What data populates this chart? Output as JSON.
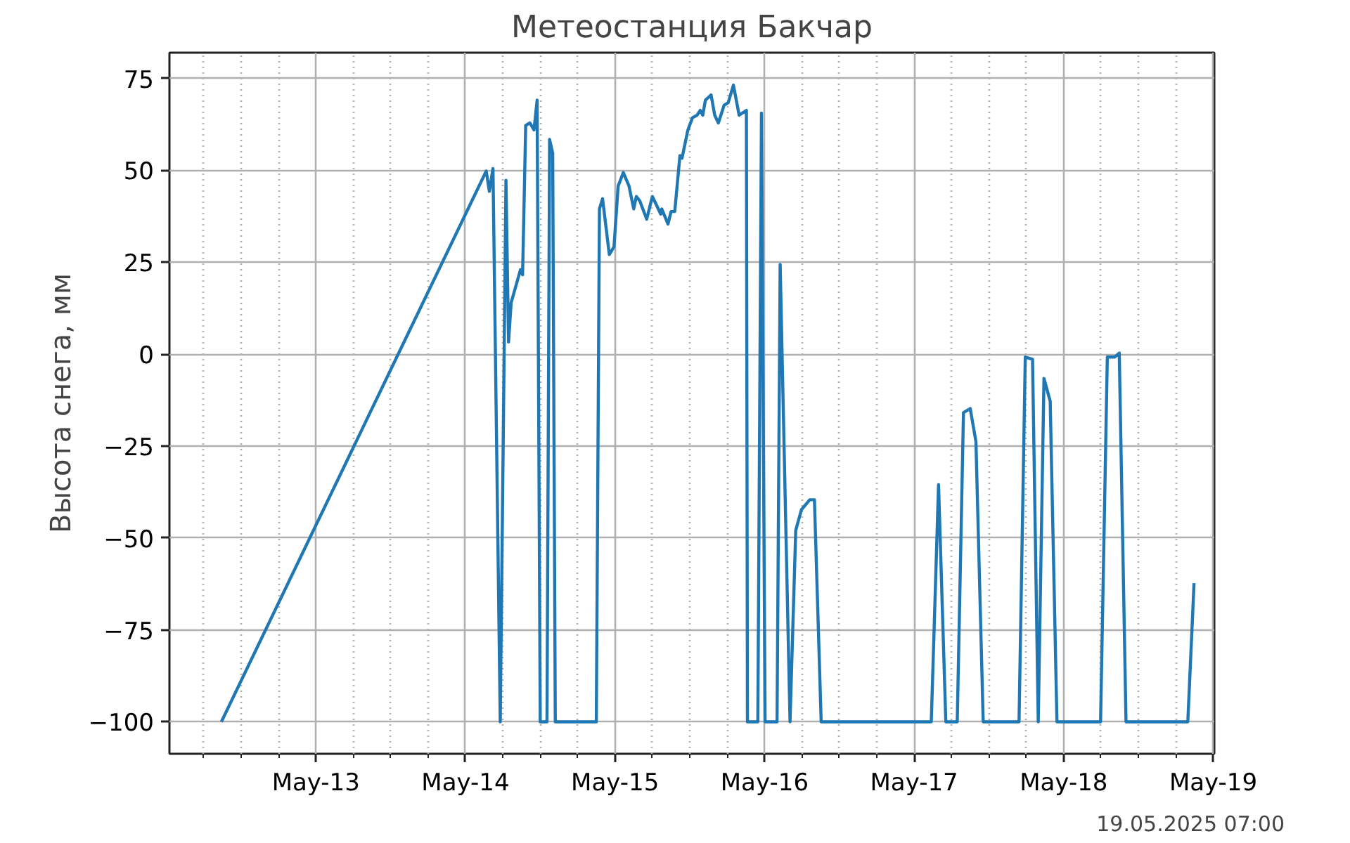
{
  "chart_data": {
    "type": "line",
    "title": "Метеостанция Бакчар",
    "ylabel": "Высота снега, мм",
    "annotations": [
      "19.05.2025 07:00"
    ],
    "x": [
      "2025-05-12T08:50",
      "2025-05-14T03:20",
      "2025-05-14T03:50",
      "2025-05-14T04:25",
      "2025-05-14T05:35",
      "2025-05-14T06:30",
      "2025-05-14T06:55",
      "2025-05-14T07:20",
      "2025-05-14T08:50",
      "2025-05-14T09:10",
      "2025-05-14T09:40",
      "2025-05-14T10:20",
      "2025-05-14T11:00",
      "2025-05-14T11:30",
      "2025-05-14T12:00",
      "2025-05-14T13:05",
      "2025-05-14T13:30",
      "2025-05-14T14:00",
      "2025-05-14T14:25",
      "2025-05-14T21:00",
      "2025-05-14T21:30",
      "2025-05-14T22:00",
      "2025-05-14T23:05",
      "2025-05-14T23:50",
      "2025-05-15T00:30",
      "2025-05-15T01:20",
      "2025-05-15T02:15",
      "2025-05-15T03:00",
      "2025-05-15T03:25",
      "2025-05-15T04:00",
      "2025-05-15T05:05",
      "2025-05-15T06:00",
      "2025-05-15T06:45",
      "2025-05-15T07:20",
      "2025-05-15T07:30",
      "2025-05-15T08:30",
      "2025-05-15T09:00",
      "2025-05-15T09:35",
      "2025-05-15T10:25",
      "2025-05-15T10:45",
      "2025-05-15T11:40",
      "2025-05-15T12:25",
      "2025-05-15T13:10",
      "2025-05-15T13:40",
      "2025-05-15T14:05",
      "2025-05-15T14:30",
      "2025-05-15T15:25",
      "2025-05-15T16:00",
      "2025-05-15T16:35",
      "2025-05-15T17:30",
      "2025-05-15T18:10",
      "2025-05-15T19:00",
      "2025-05-15T19:55",
      "2025-05-15T21:05",
      "2025-05-15T21:15",
      "2025-05-15T22:55",
      "2025-05-15T23:30",
      "2025-05-16T00:05",
      "2025-05-16T02:00",
      "2025-05-16T02:30",
      "2025-05-16T04:05",
      "2025-05-16T05:00",
      "2025-05-16T05:55",
      "2025-05-16T07:15",
      "2025-05-16T08:00",
      "2025-05-16T09:05",
      "2025-05-17T02:45",
      "2025-05-17T03:55",
      "2025-05-17T05:05",
      "2025-05-17T06:55",
      "2025-05-17T07:55",
      "2025-05-17T09:00",
      "2025-05-17T09:55",
      "2025-05-17T11:05",
      "2025-05-17T16:50",
      "2025-05-17T17:50",
      "2025-05-17T19:00",
      "2025-05-17T19:55",
      "2025-05-17T20:50",
      "2025-05-17T21:50",
      "2025-05-17T22:55",
      "2025-05-18T05:55",
      "2025-05-18T07:00",
      "2025-05-18T08:10",
      "2025-05-18T08:55",
      "2025-05-18T10:00",
      "2025-05-18T19:55",
      "2025-05-18T20:55"
    ],
    "series": [
      {
        "color": "#1f77b4",
        "values": [
          -100,
          49.8,
          44.3,
          50.5,
          -100,
          47.3,
          3.3,
          14,
          23,
          21.6,
          62.2,
          62.9,
          61,
          69.1,
          -100,
          -100,
          58.4,
          54.7,
          -100,
          -100,
          39.5,
          42.3,
          27.1,
          29.2,
          45.7,
          49.4,
          45.7,
          39.5,
          42.9,
          41.6,
          36.7,
          42.9,
          40.2,
          38.1,
          39.5,
          35.4,
          38.8,
          38.8,
          54,
          53.3,
          60.8,
          64.3,
          65,
          66.3,
          65,
          69.1,
          70.5,
          65,
          62.9,
          67.7,
          68.4,
          73.2,
          65,
          66.3,
          -100,
          -100,
          65.6,
          -100,
          -100,
          24.4,
          -100,
          -47.9,
          -42.3,
          -39.6,
          -39.6,
          -100,
          -100,
          -35.5,
          -100,
          -100,
          -15.9,
          -14.8,
          -23.8,
          -100,
          -100,
          -0.8,
          -1.4,
          -100,
          -6.6,
          -12.8,
          -100,
          -100,
          -0.8,
          -0.8,
          0.3,
          -100,
          -100,
          -62.3
        ]
      }
    ],
    "xlim": [
      "2025-05-12T00:30",
      "2025-05-19T00:10"
    ],
    "xticks": [
      {
        "value": "2025-05-12T06:00",
        "label": null
      },
      {
        "value": "2025-05-12T12:00",
        "label": null
      },
      {
        "value": "2025-05-12T18:00",
        "label": null
      },
      {
        "value": "2025-05-13",
        "label": "May-13"
      },
      {
        "value": "2025-05-13T06:00",
        "label": null
      },
      {
        "value": "2025-05-13T12:00",
        "label": null
      },
      {
        "value": "2025-05-13T18:00",
        "label": null
      },
      {
        "value": "2025-05-14",
        "label": "May-14"
      },
      {
        "value": "2025-05-14T06:00",
        "label": null
      },
      {
        "value": "2025-05-14T12:00",
        "label": null
      },
      {
        "value": "2025-05-14T18:00",
        "label": null
      },
      {
        "value": "2025-05-15",
        "label": "May-15"
      },
      {
        "value": "2025-05-15T06:00",
        "label": null
      },
      {
        "value": "2025-05-15T12:00",
        "label": null
      },
      {
        "value": "2025-05-15T18:00",
        "label": null
      },
      {
        "value": "2025-05-16",
        "label": "May-16"
      },
      {
        "value": "2025-05-16T06:00",
        "label": null
      },
      {
        "value": "2025-05-16T12:00",
        "label": null
      },
      {
        "value": "2025-05-16T18:00",
        "label": null
      },
      {
        "value": "2025-05-17",
        "label": "May-17"
      },
      {
        "value": "2025-05-17T06:00",
        "label": null
      },
      {
        "value": "2025-05-17T12:00",
        "label": null
      },
      {
        "value": "2025-05-17T18:00",
        "label": null
      },
      {
        "value": "2025-05-18",
        "label": "May-18"
      },
      {
        "value": "2025-05-18T06:00",
        "label": null
      },
      {
        "value": "2025-05-18T12:00",
        "label": null
      },
      {
        "value": "2025-05-18T18:00",
        "label": null
      },
      {
        "value": "2025-05-19",
        "label": "May-19"
      }
    ],
    "ylim": [
      -108.7,
      82.0
    ],
    "yticks": [
      {
        "value": -100,
        "label": "−100"
      },
      {
        "value": -75,
        "label": "−75"
      },
      {
        "value": -50,
        "label": "−50"
      },
      {
        "value": -25,
        "label": "−25"
      },
      0,
      25,
      50,
      75
    ],
    "grid": true
  }
}
